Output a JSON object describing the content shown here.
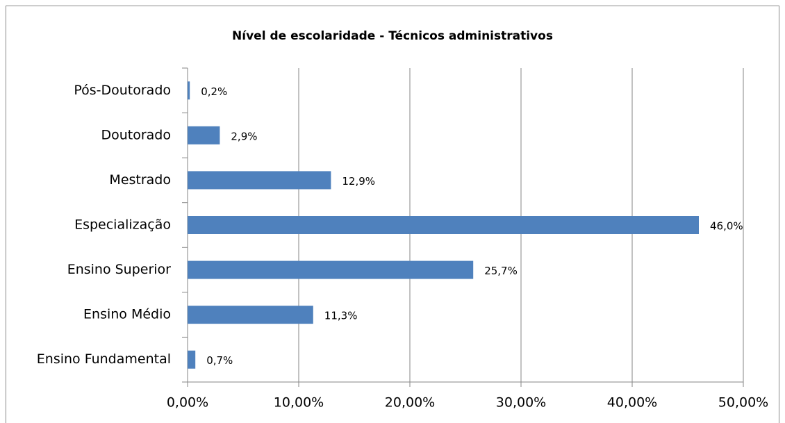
{
  "chart_data": {
    "type": "bar",
    "orientation": "horizontal",
    "title": "Nível de escolaridade - Técnicos administrativos",
    "categories": [
      "Pós-Doutorado",
      "Doutorado",
      "Mestrado",
      "Especialização",
      "Ensino Superior",
      "Ensino Médio",
      "Ensino Fundamental"
    ],
    "values": [
      0.2,
      2.9,
      12.9,
      46.0,
      25.7,
      11.3,
      0.7
    ],
    "value_labels": [
      "0,2%",
      "2,9%",
      "12,9%",
      "46,0%",
      "25,7%",
      "11,3%",
      "0,7%"
    ],
    "color": "#4f81bd",
    "xlim": [
      0,
      50
    ],
    "xticks": [
      {
        "value": 0,
        "label": "0,00%"
      },
      {
        "value": 10,
        "label": "10,00%"
      },
      {
        "value": 20,
        "label": "20,00%"
      },
      {
        "value": 30,
        "label": "30,00%"
      },
      {
        "value": 40,
        "label": "40,00%"
      },
      {
        "value": 50,
        "label": "50,00%"
      }
    ],
    "grid": true
  }
}
